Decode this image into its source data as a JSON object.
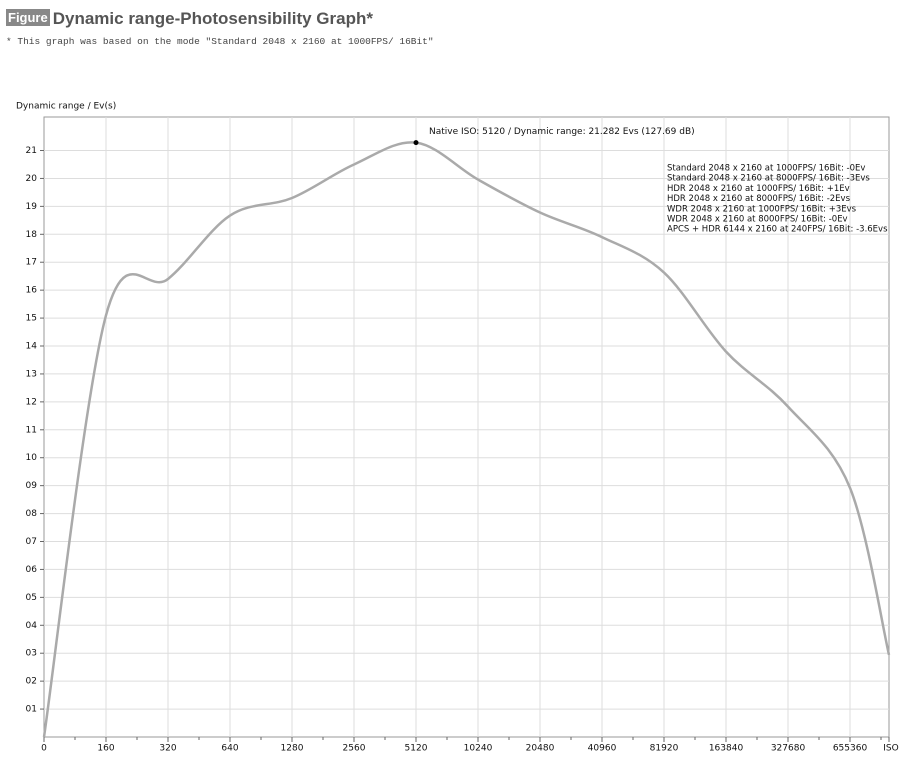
{
  "header": {
    "badge": "Figure",
    "title": "Dynamic range-Photosensibility Graph*",
    "note": "* This graph was based on the mode \"Standard 2048 x 2160 at 1000FPS/ 16Bit\""
  },
  "chart_data": {
    "type": "line",
    "y_label": "Dynamic range / Ev(s)",
    "x_label": "ISO",
    "categories": [
      "0",
      "160",
      "320",
      "640",
      "1280",
      "2560",
      "5120",
      "10240",
      "20480",
      "40960",
      "81920",
      "163840",
      "327680",
      "655360",
      null
    ],
    "series": [
      {
        "name": null,
        "color": "#aaaaaa",
        "values": [
          0,
          15.1,
          16.4,
          18.67,
          19.3,
          20.5,
          21.282,
          19.96,
          18.78,
          17.9,
          16.63,
          13.8,
          11.83,
          8.92,
          2.94
        ]
      }
    ],
    "annotation": {
      "text": "Native ISO: 5120 / Dynamic range: 21.282 Evs (127.69 dB)",
      "index": 6
    },
    "legend_lines": [
      "Standard 2048 x 2160 at 1000FPS/ 16Bit: -0Ev",
      "Standard 2048 x 2160 at 8000FPS/ 16Bit: -3Evs",
      "HDR 2048 x 2160 at 1000FPS/ 16Bit: +1Ev",
      "HDR 2048 x 2160 at 8000FPS/ 16Bit: -2Evs",
      "WDR 2048 x 2160 at 1000FPS/ 16Bit: +3Evs",
      "WDR 2048 x 2160 at 8000FPS/ 16Bit: -0Ev",
      "APCS + HDR 6144 x 2160 at 240FPS/ 16Bit: -3.6Evs"
    ],
    "ylim": [
      0,
      22.2
    ],
    "yticks": [
      {
        "value": 1,
        "label": "01"
      },
      {
        "value": 2,
        "label": "02"
      },
      {
        "value": 3,
        "label": "03"
      },
      {
        "value": 4,
        "label": "04"
      },
      {
        "value": 5,
        "label": "05"
      },
      {
        "value": 6,
        "label": "06"
      },
      {
        "value": 7,
        "label": "07"
      },
      {
        "value": 8,
        "label": "08"
      },
      {
        "value": 9,
        "label": "09"
      },
      10,
      11,
      12,
      13,
      14,
      15,
      16,
      17,
      18,
      19,
      20,
      21
    ],
    "grid": true
  }
}
